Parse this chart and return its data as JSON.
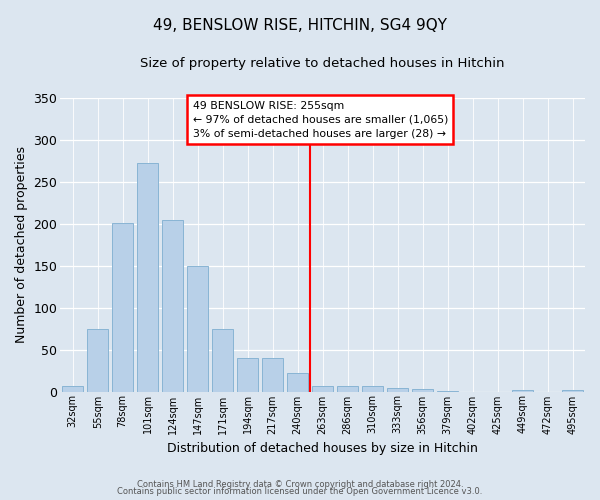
{
  "title": "49, BENSLOW RISE, HITCHIN, SG4 9QY",
  "subtitle": "Size of property relative to detached houses in Hitchin",
  "xlabel": "Distribution of detached houses by size in Hitchin",
  "ylabel": "Number of detached properties",
  "bar_labels": [
    "32sqm",
    "55sqm",
    "78sqm",
    "101sqm",
    "124sqm",
    "147sqm",
    "171sqm",
    "194sqm",
    "217sqm",
    "240sqm",
    "263sqm",
    "286sqm",
    "310sqm",
    "333sqm",
    "356sqm",
    "379sqm",
    "402sqm",
    "425sqm",
    "449sqm",
    "472sqm",
    "495sqm"
  ],
  "bar_values": [
    7,
    74,
    201,
    272,
    205,
    150,
    75,
    40,
    40,
    22,
    6,
    7,
    6,
    4,
    3,
    1,
    0,
    0,
    2,
    0,
    2
  ],
  "bar_color": "#b8d0e8",
  "bar_edgecolor": "#89b4d4",
  "background_color": "#dce6f0",
  "ylim": [
    0,
    350
  ],
  "yticks": [
    0,
    50,
    100,
    150,
    200,
    250,
    300,
    350
  ],
  "vline_label": "49 BENSLOW RISE: 255sqm",
  "annotation_line1": "← 97% of detached houses are smaller (1,065)",
  "annotation_line2": "3% of semi-detached houses are larger (28) →",
  "footer1": "Contains HM Land Registry data © Crown copyright and database right 2024.",
  "footer2": "Contains public sector information licensed under the Open Government Licence v3.0."
}
